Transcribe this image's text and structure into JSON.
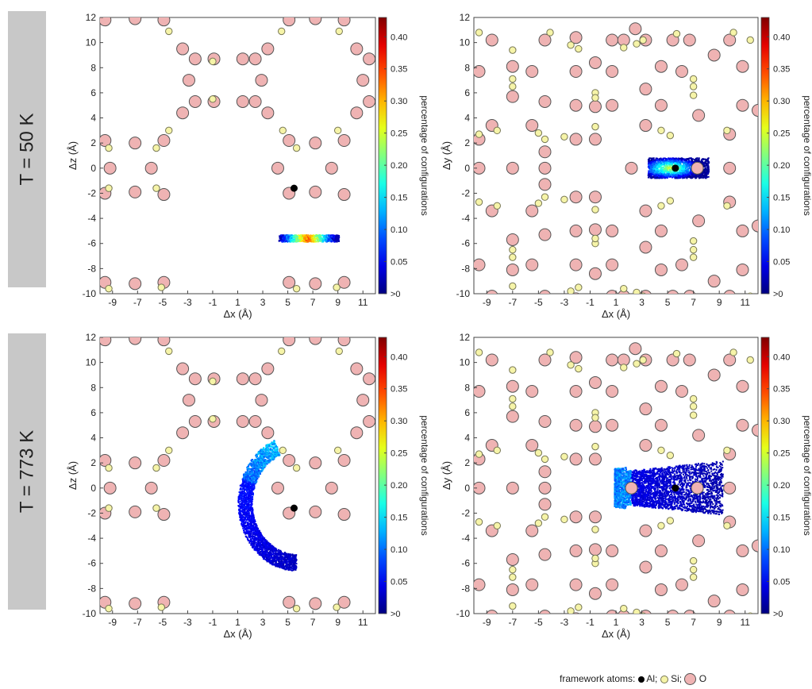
{
  "row_labels": [
    "T = 50 K",
    "T = 773 K"
  ],
  "colorbar": {
    "label": "percentage of configurations",
    "ticks": [
      "0.40",
      "0.35",
      "0.30",
      "0.25",
      "0.20",
      "0.15",
      "0.10",
      "0.05",
      ">0"
    ],
    "tick_values": [
      0.4,
      0.35,
      0.3,
      0.25,
      0.2,
      0.15,
      0.1,
      0.05,
      0.0
    ],
    "max": 0.43
  },
  "footer": {
    "prefix": "framework atoms: ",
    "al": "Al; ",
    "si": "Si; ",
    "o": "O"
  },
  "colors": {
    "O_fill": "#efb3b3",
    "O_stroke": "#555555",
    "Si_fill": "#f6f4a8",
    "Si_stroke": "#777755",
    "Al_fill": "#000000"
  },
  "chart_data": [
    {
      "type": "heatmap",
      "row": 0,
      "xlabel": "Δx (Å)",
      "ylabel": "Δz (Å)",
      "xlim": [
        -10,
        12
      ],
      "ylim": [
        -10,
        12
      ],
      "xticks": [
        "-9",
        "-7",
        "-5",
        "-3",
        "-1",
        "1",
        "3",
        "5",
        "7",
        "9",
        "11"
      ],
      "yticks": [
        "12",
        "10",
        "8",
        "6",
        "4",
        "2",
        "0",
        "-2",
        "-4",
        "-6",
        "-8",
        "-10"
      ],
      "view": "xz",
      "O": [
        [
          -9.6,
          11.8
        ],
        [
          -7.2,
          11.9
        ],
        [
          -4.9,
          11.8
        ],
        [
          -3.4,
          9.5
        ],
        [
          -2.4,
          8.7
        ],
        [
          -0.9,
          8.7
        ],
        [
          2.4,
          8.7
        ],
        [
          3.4,
          9.5
        ],
        [
          1.4,
          8.7
        ],
        [
          -2.9,
          7.0
        ],
        [
          2.9,
          7.0
        ],
        [
          -2.4,
          5.3
        ],
        [
          -0.9,
          5.3
        ],
        [
          1.4,
          5.3
        ],
        [
          2.4,
          5.3
        ],
        [
          -3.4,
          4.4
        ],
        [
          3.4,
          4.4
        ],
        [
          -9.6,
          2.2
        ],
        [
          -7.2,
          2.0
        ],
        [
          -4.9,
          2.2
        ],
        [
          -9.2,
          0.0
        ],
        [
          -5.9,
          0.0
        ],
        [
          -9.6,
          -2.0
        ],
        [
          -7.2,
          -1.9
        ],
        [
          -4.9,
          -2.1
        ],
        [
          -9.6,
          -9.1
        ],
        [
          -7.2,
          -9.2
        ],
        [
          -4.9,
          -9.1
        ],
        [
          5.1,
          11.8
        ],
        [
          7.2,
          11.9
        ],
        [
          9.5,
          11.8
        ],
        [
          10.5,
          9.5
        ],
        [
          11.5,
          8.7
        ],
        [
          11.0,
          7.0
        ],
        [
          11.5,
          5.3
        ],
        [
          10.5,
          4.4
        ],
        [
          5.1,
          2.2
        ],
        [
          7.2,
          2.0
        ],
        [
          9.5,
          2.2
        ],
        [
          4.2,
          0.0
        ],
        [
          8.5,
          0.0
        ],
        [
          5.1,
          -2.0
        ],
        [
          7.2,
          -1.9
        ],
        [
          9.5,
          -2.1
        ],
        [
          5.1,
          -9.1
        ],
        [
          7.2,
          -9.2
        ],
        [
          9.5,
          -9.1
        ]
      ],
      "Si": [
        [
          -9.3,
          -9.6
        ],
        [
          -5.1,
          -9.5
        ],
        [
          -4.5,
          10.9
        ],
        [
          -1.0,
          8.5
        ],
        [
          -1.0,
          5.5
        ],
        [
          4.5,
          10.9
        ],
        [
          -9.3,
          1.6
        ],
        [
          -5.5,
          1.6
        ],
        [
          -9.3,
          -1.6
        ],
        [
          -5.5,
          -1.6
        ],
        [
          -4.5,
          3.0
        ],
        [
          4.6,
          3.0
        ],
        [
          5.7,
          1.6
        ],
        [
          5.7,
          -9.6
        ],
        [
          9.0,
          3.0
        ],
        [
          9.1,
          10.9
        ],
        [
          8.9,
          -9.5
        ]
      ],
      "Al": [
        [
          5.5,
          -1.6
        ]
      ],
      "distribution": "ring_low"
    },
    {
      "type": "heatmap",
      "row": 0,
      "xlabel": "Δx (Å)",
      "ylabel": "Δy (Å)",
      "xlim": [
        -10,
        12
      ],
      "ylim": [
        -10,
        12
      ],
      "xticks": [
        "-9",
        "-7",
        "-5",
        "-3",
        "-1",
        "1",
        "3",
        "5",
        "7",
        "9",
        "11"
      ],
      "yticks": [
        "12",
        "10",
        "8",
        "6",
        "4",
        "2",
        "0",
        "-2",
        "-4",
        "-6",
        "-8",
        "-10"
      ],
      "view": "xy",
      "O": [
        [
          -9.6,
          7.7
        ],
        [
          -8.6,
          10.2
        ],
        [
          -7.0,
          8.1
        ],
        [
          -7.0,
          5.7
        ],
        [
          -8.6,
          3.4
        ],
        [
          -9.6,
          0.0
        ],
        [
          -7.0,
          0.0
        ],
        [
          -4.5,
          10.2
        ],
        [
          -5.5,
          7.7
        ],
        [
          -4.5,
          5.3
        ],
        [
          -5.5,
          3.4
        ],
        [
          -4.5,
          1.3
        ],
        [
          -4.5,
          0.0
        ],
        [
          -2.1,
          10.4
        ],
        [
          -2.1,
          7.7
        ],
        [
          -2.1,
          5.0
        ],
        [
          -2.1,
          2.3
        ],
        [
          -0.6,
          8.4
        ],
        [
          -0.6,
          4.9
        ],
        [
          -0.6,
          2.3
        ],
        [
          0.7,
          10.2
        ],
        [
          0.7,
          7.7
        ],
        [
          0.7,
          5.0
        ],
        [
          1.6,
          10.2
        ],
        [
          2.5,
          11.1
        ],
        [
          3.3,
          10.2
        ],
        [
          3.3,
          6.3
        ],
        [
          3.3,
          3.4
        ],
        [
          4.5,
          8.1
        ],
        [
          4.5,
          5.0
        ],
        [
          5.4,
          10.2
        ],
        [
          6.1,
          7.7
        ],
        [
          6.7,
          10.2
        ],
        [
          7.4,
          4.2
        ],
        [
          7.3,
          0.0
        ],
        [
          8.6,
          9.0
        ],
        [
          9.8,
          10.2
        ],
        [
          10.8,
          8.1
        ],
        [
          10.8,
          5.0
        ],
        [
          9.8,
          2.7
        ],
        [
          9.8,
          0.0
        ],
        [
          12.0,
          4.6
        ],
        [
          -9.6,
          -7.7
        ],
        [
          -8.6,
          -10.2
        ],
        [
          -7.0,
          -8.1
        ],
        [
          -7.0,
          -5.7
        ],
        [
          -8.6,
          -3.4
        ],
        [
          -4.5,
          -10.2
        ],
        [
          -5.5,
          -7.7
        ],
        [
          -4.5,
          -5.3
        ],
        [
          -5.5,
          -3.4
        ],
        [
          -4.5,
          -1.3
        ],
        [
          -2.1,
          -10.4
        ],
        [
          -2.1,
          -7.7
        ],
        [
          -2.1,
          -5.0
        ],
        [
          -2.1,
          -2.3
        ],
        [
          -0.6,
          -8.4
        ],
        [
          -0.6,
          -4.9
        ],
        [
          -0.6,
          -2.3
        ],
        [
          0.7,
          -10.2
        ],
        [
          0.7,
          -7.7
        ],
        [
          0.7,
          -5.0
        ],
        [
          1.6,
          -10.2
        ],
        [
          2.5,
          -11.1
        ],
        [
          3.3,
          -10.2
        ],
        [
          3.3,
          -6.3
        ],
        [
          3.3,
          -3.4
        ],
        [
          4.5,
          -8.1
        ],
        [
          4.5,
          -5.0
        ],
        [
          5.4,
          -10.2
        ],
        [
          6.1,
          -7.7
        ],
        [
          6.7,
          -10.2
        ],
        [
          7.4,
          -4.2
        ],
        [
          8.6,
          -9.0
        ],
        [
          9.8,
          -10.2
        ],
        [
          10.8,
          -8.1
        ],
        [
          10.8,
          -5.0
        ],
        [
          9.8,
          -2.7
        ],
        [
          12.0,
          -4.6
        ],
        [
          -9.6,
          2.3
        ],
        [
          2.2,
          0.0
        ]
      ],
      "Si": [
        [
          -9.6,
          10.8
        ],
        [
          -9.6,
          2.7
        ],
        [
          -8.2,
          3.0
        ],
        [
          -7.0,
          6.5
        ],
        [
          -7.0,
          7.1
        ],
        [
          -7.0,
          9.4
        ],
        [
          -5.0,
          2.8
        ],
        [
          -4.5,
          2.3
        ],
        [
          -4.1,
          10.8
        ],
        [
          -3.0,
          2.5
        ],
        [
          -2.5,
          9.8
        ],
        [
          -1.9,
          9.5
        ],
        [
          -0.6,
          6.0
        ],
        [
          -0.6,
          5.6
        ],
        [
          -0.6,
          3.3
        ],
        [
          1.6,
          9.6
        ],
        [
          2.6,
          9.9
        ],
        [
          3.1,
          10.2
        ],
        [
          4.5,
          3.0
        ],
        [
          5.2,
          2.6
        ],
        [
          5.7,
          10.7
        ],
        [
          7.0,
          6.5
        ],
        [
          7.0,
          7.1
        ],
        [
          7.0,
          5.8
        ],
        [
          9.6,
          3.0
        ],
        [
          10.1,
          10.8
        ],
        [
          11.4,
          10.2
        ],
        [
          -9.6,
          -2.7
        ],
        [
          -8.2,
          -3.0
        ],
        [
          -7.0,
          -6.5
        ],
        [
          -7.0,
          -7.1
        ],
        [
          -7.0,
          -9.4
        ],
        [
          -5.0,
          -2.8
        ],
        [
          -4.5,
          -2.3
        ],
        [
          -4.1,
          -10.8
        ],
        [
          -3.0,
          -2.5
        ],
        [
          -2.5,
          -9.8
        ],
        [
          -1.9,
          -9.5
        ],
        [
          -0.6,
          -6.0
        ],
        [
          -0.6,
          -5.6
        ],
        [
          -0.6,
          -3.3
        ],
        [
          1.6,
          -9.6
        ],
        [
          2.6,
          -9.9
        ],
        [
          3.1,
          -10.2
        ],
        [
          4.5,
          -3.0
        ],
        [
          5.2,
          -2.6
        ],
        [
          5.7,
          -10.7
        ],
        [
          7.0,
          -6.5
        ],
        [
          7.0,
          -7.1
        ],
        [
          7.0,
          -5.8
        ],
        [
          9.6,
          -3.0
        ],
        [
          10.1,
          -10.8
        ],
        [
          11.4,
          -10.2
        ],
        [
          -3.0,
          -10.3
        ],
        [
          3.5,
          -10.4
        ]
      ],
      "Al": [
        [
          5.6,
          0.0
        ]
      ],
      "distribution": "blob_low"
    },
    {
      "type": "heatmap",
      "row": 1,
      "xlabel": "Δx (Å)",
      "ylabel": "Δz (Å)",
      "xlim": [
        -10,
        12
      ],
      "ylim": [
        -10,
        12
      ],
      "xticks": [
        "-9",
        "-7",
        "-5",
        "-3",
        "-1",
        "1",
        "3",
        "5",
        "7",
        "9",
        "11"
      ],
      "yticks": [
        "12",
        "10",
        "8",
        "6",
        "4",
        "2",
        "0",
        "-2",
        "-4",
        "-6",
        "-8",
        "-10"
      ],
      "view": "xz",
      "same_framework_as": 0,
      "distribution": "crescent_high"
    },
    {
      "type": "heatmap",
      "row": 1,
      "xlabel": "Δx (Å)",
      "ylabel": "Δy (Å)",
      "xlim": [
        -10,
        12
      ],
      "ylim": [
        -10,
        12
      ],
      "xticks": [
        "-9",
        "-7",
        "-5",
        "-3",
        "-1",
        "1",
        "3",
        "5",
        "7",
        "9",
        "11"
      ],
      "yticks": [
        "12",
        "10",
        "8",
        "6",
        "4",
        "2",
        "0",
        "-2",
        "-4",
        "-6",
        "-8",
        "-10"
      ],
      "view": "xy",
      "same_framework_as": 1,
      "distribution": "fan_high"
    }
  ]
}
